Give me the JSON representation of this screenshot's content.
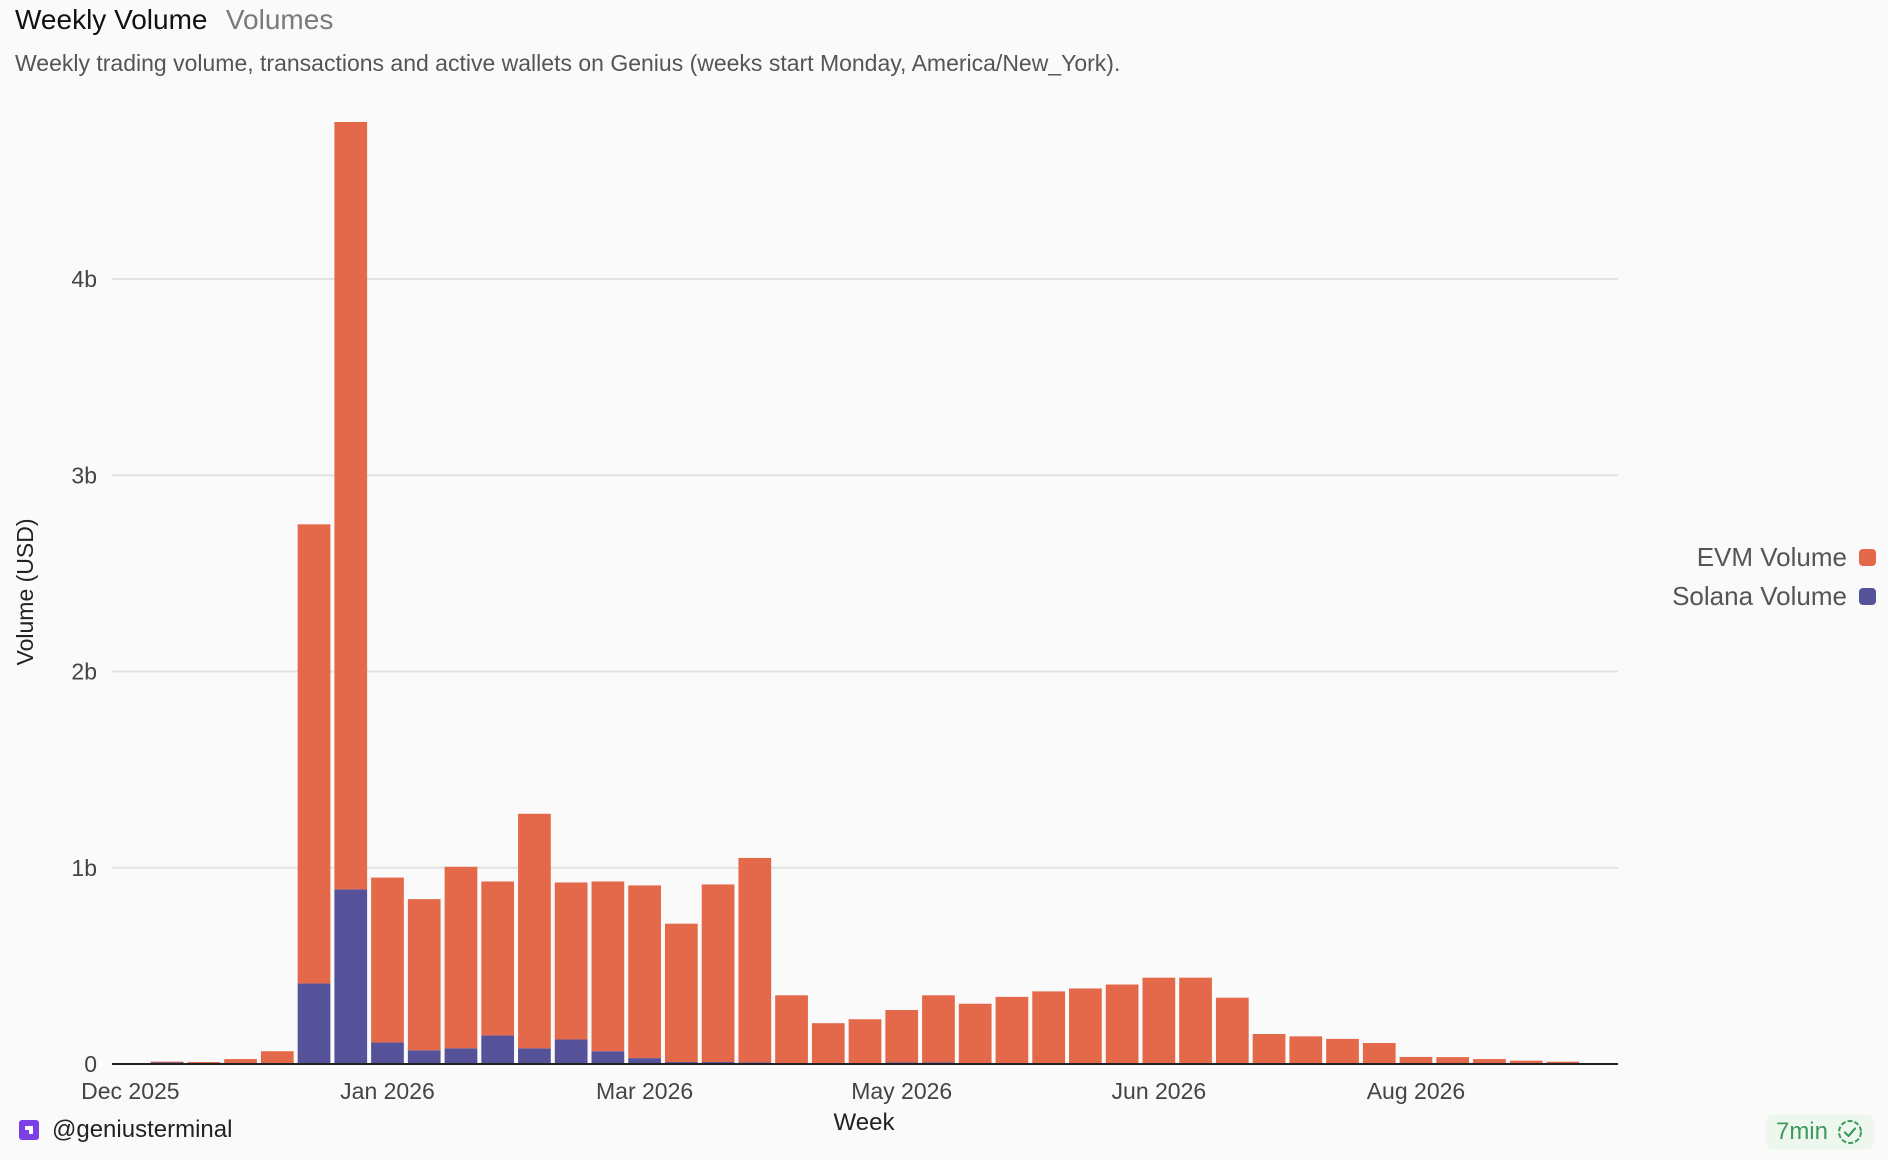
{
  "header": {
    "title": "Weekly Volume",
    "tag": "Volumes",
    "description": "Weekly trading volume, transactions and active wallets on Genius (weeks start Monday, America/New_York)."
  },
  "footer": {
    "handle": "@geniusterminal",
    "logo_icon": "genius-logo-icon",
    "freshness": "7min",
    "freshness_icon": "check-badge-icon"
  },
  "colors": {
    "evm": "#e4694a",
    "solana": "#55529a",
    "grid": "#e2e2e2",
    "axis": "#222222"
  },
  "chart_data": {
    "type": "bar",
    "stacked": true,
    "xlabel": "Week",
    "ylabel": "Volume (USD)",
    "ylim": [
      0,
      4800000000
    ],
    "y_ticks": [
      {
        "value": 0,
        "label": "0"
      },
      {
        "value": 1000000000,
        "label": "1b"
      },
      {
        "value": 2000000000,
        "label": "2b"
      },
      {
        "value": 3000000000,
        "label": "3b"
      },
      {
        "value": 4000000000,
        "label": "4b"
      }
    ],
    "x_ticks": [
      {
        "index": 0,
        "label": "Dec 2025"
      },
      {
        "index": 7,
        "label": "Jan 2026"
      },
      {
        "index": 14,
        "label": "Mar 2026"
      },
      {
        "index": 21,
        "label": "May 2026"
      },
      {
        "index": 28,
        "label": "Jun 2026"
      },
      {
        "index": 35,
        "label": "Aug 2026"
      }
    ],
    "grid": true,
    "legend_position": "right",
    "categories": [
      "2025-11-24",
      "2025-12-01",
      "2025-12-08",
      "2025-12-15",
      "2025-12-22",
      "2025-12-29",
      "2026-01-05",
      "2026-01-12",
      "2026-01-19",
      "2026-01-26",
      "2026-02-02",
      "2026-02-09",
      "2026-02-16",
      "2026-02-23",
      "2026-03-02",
      "2026-03-09",
      "2026-03-16",
      "2026-03-23",
      "2026-03-30",
      "2026-04-06",
      "2026-04-13",
      "2026-04-20",
      "2026-04-27",
      "2026-05-04",
      "2026-05-11",
      "2026-05-18",
      "2026-05-25",
      "2026-06-01",
      "2026-06-08",
      "2026-06-15",
      "2026-06-22",
      "2026-06-29",
      "2026-07-06",
      "2026-07-13",
      "2026-07-20",
      "2026-07-27",
      "2026-08-03",
      "2026-08-10",
      "2026-08-17",
      "2026-08-24",
      "2026-08-31"
    ],
    "series": [
      {
        "name": "Solana Volume",
        "values": [
          0,
          10000000,
          5000000,
          3000000,
          3000000,
          410000000,
          890000000,
          110000000,
          70000000,
          80000000,
          145000000,
          80000000,
          125000000,
          65000000,
          30000000,
          10000000,
          10000000,
          8000000,
          5000000,
          3000000,
          3000000,
          8000000,
          8000000,
          5000000,
          5000000,
          5000000,
          5000000,
          5000000,
          5000000,
          5000000,
          3000000,
          3000000,
          3000000,
          3000000,
          2000000,
          2000000,
          1000000,
          1000000,
          1000000,
          1000000,
          1000000
        ]
      },
      {
        "name": "EVM Volume",
        "values": [
          0,
          2000000,
          5000000,
          22000000,
          62000000,
          2340000000,
          3910000000,
          840000000,
          770000000,
          925000000,
          785000000,
          1195000000,
          800000000,
          865000000,
          880000000,
          705000000,
          905000000,
          1042000000,
          345000000,
          205000000,
          225000000,
          267000000,
          342000000,
          302000000,
          337000000,
          365000000,
          380000000,
          400000000,
          435000000,
          435000000,
          335000000,
          150000000,
          138000000,
          125000000,
          105000000,
          34000000,
          34000000,
          24000000,
          16000000,
          11000000,
          1000000
        ]
      }
    ]
  }
}
